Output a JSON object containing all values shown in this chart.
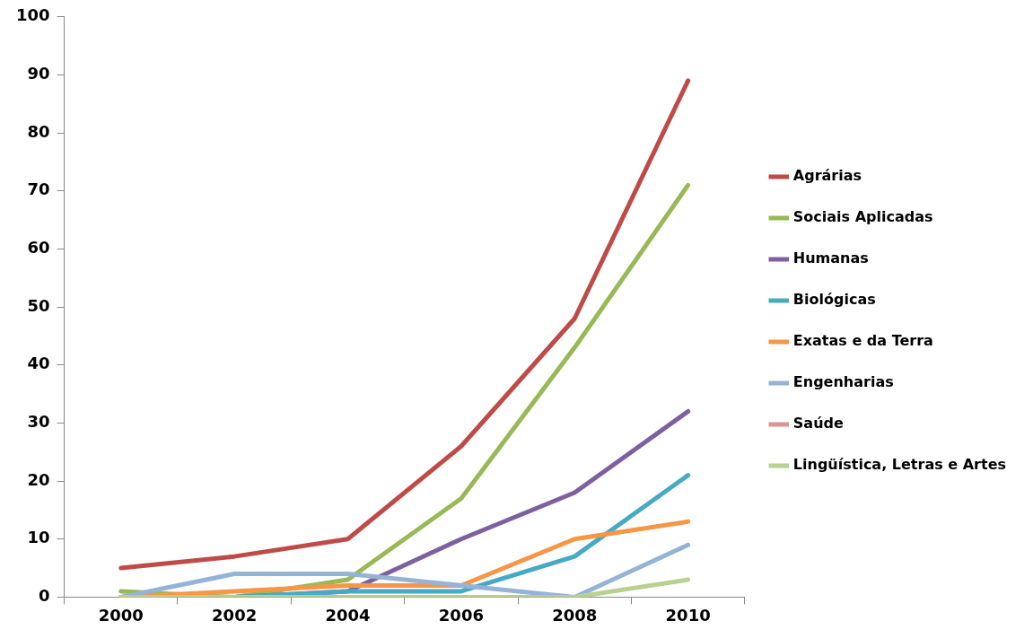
{
  "chart_data": {
    "type": "line",
    "categories": [
      "2000",
      "2002",
      "2004",
      "2006",
      "2008",
      "2010"
    ],
    "ylim": [
      0,
      100
    ],
    "yticks": [
      0,
      10,
      20,
      30,
      40,
      50,
      60,
      70,
      80,
      90,
      100
    ],
    "grid": false,
    "legend": "right",
    "marker": "none",
    "line_style": "solid",
    "series": [
      {
        "name": "Agrárias",
        "color": "#be4b48",
        "values": [
          5,
          7,
          10,
          26,
          48,
          89
        ]
      },
      {
        "name": "Sociais Aplicadas",
        "color": "#98b954",
        "values": [
          1,
          0,
          3,
          17,
          43,
          71
        ]
      },
      {
        "name": "Humanas",
        "color": "#7d60a0",
        "values": [
          0,
          0,
          1,
          10,
          18,
          32
        ]
      },
      {
        "name": "Biológicas",
        "color": "#46aac5",
        "values": [
          0,
          0,
          1,
          1,
          7,
          21
        ]
      },
      {
        "name": "Exatas e da Terra",
        "color": "#f79646",
        "values": [
          0,
          1,
          2,
          2,
          10,
          13
        ]
      },
      {
        "name": "Engenharias",
        "color": "#95b3d7",
        "values": [
          0,
          4,
          4,
          2,
          0,
          9
        ]
      },
      {
        "name": "Saúde",
        "color": "#d99694",
        "values": [
          null,
          null,
          null,
          null,
          null,
          null
        ]
      },
      {
        "name": "Lingüística, Letras e Artes",
        "color": "#b9d08f",
        "values": [
          0,
          0,
          0,
          0,
          0,
          3
        ]
      }
    ]
  }
}
